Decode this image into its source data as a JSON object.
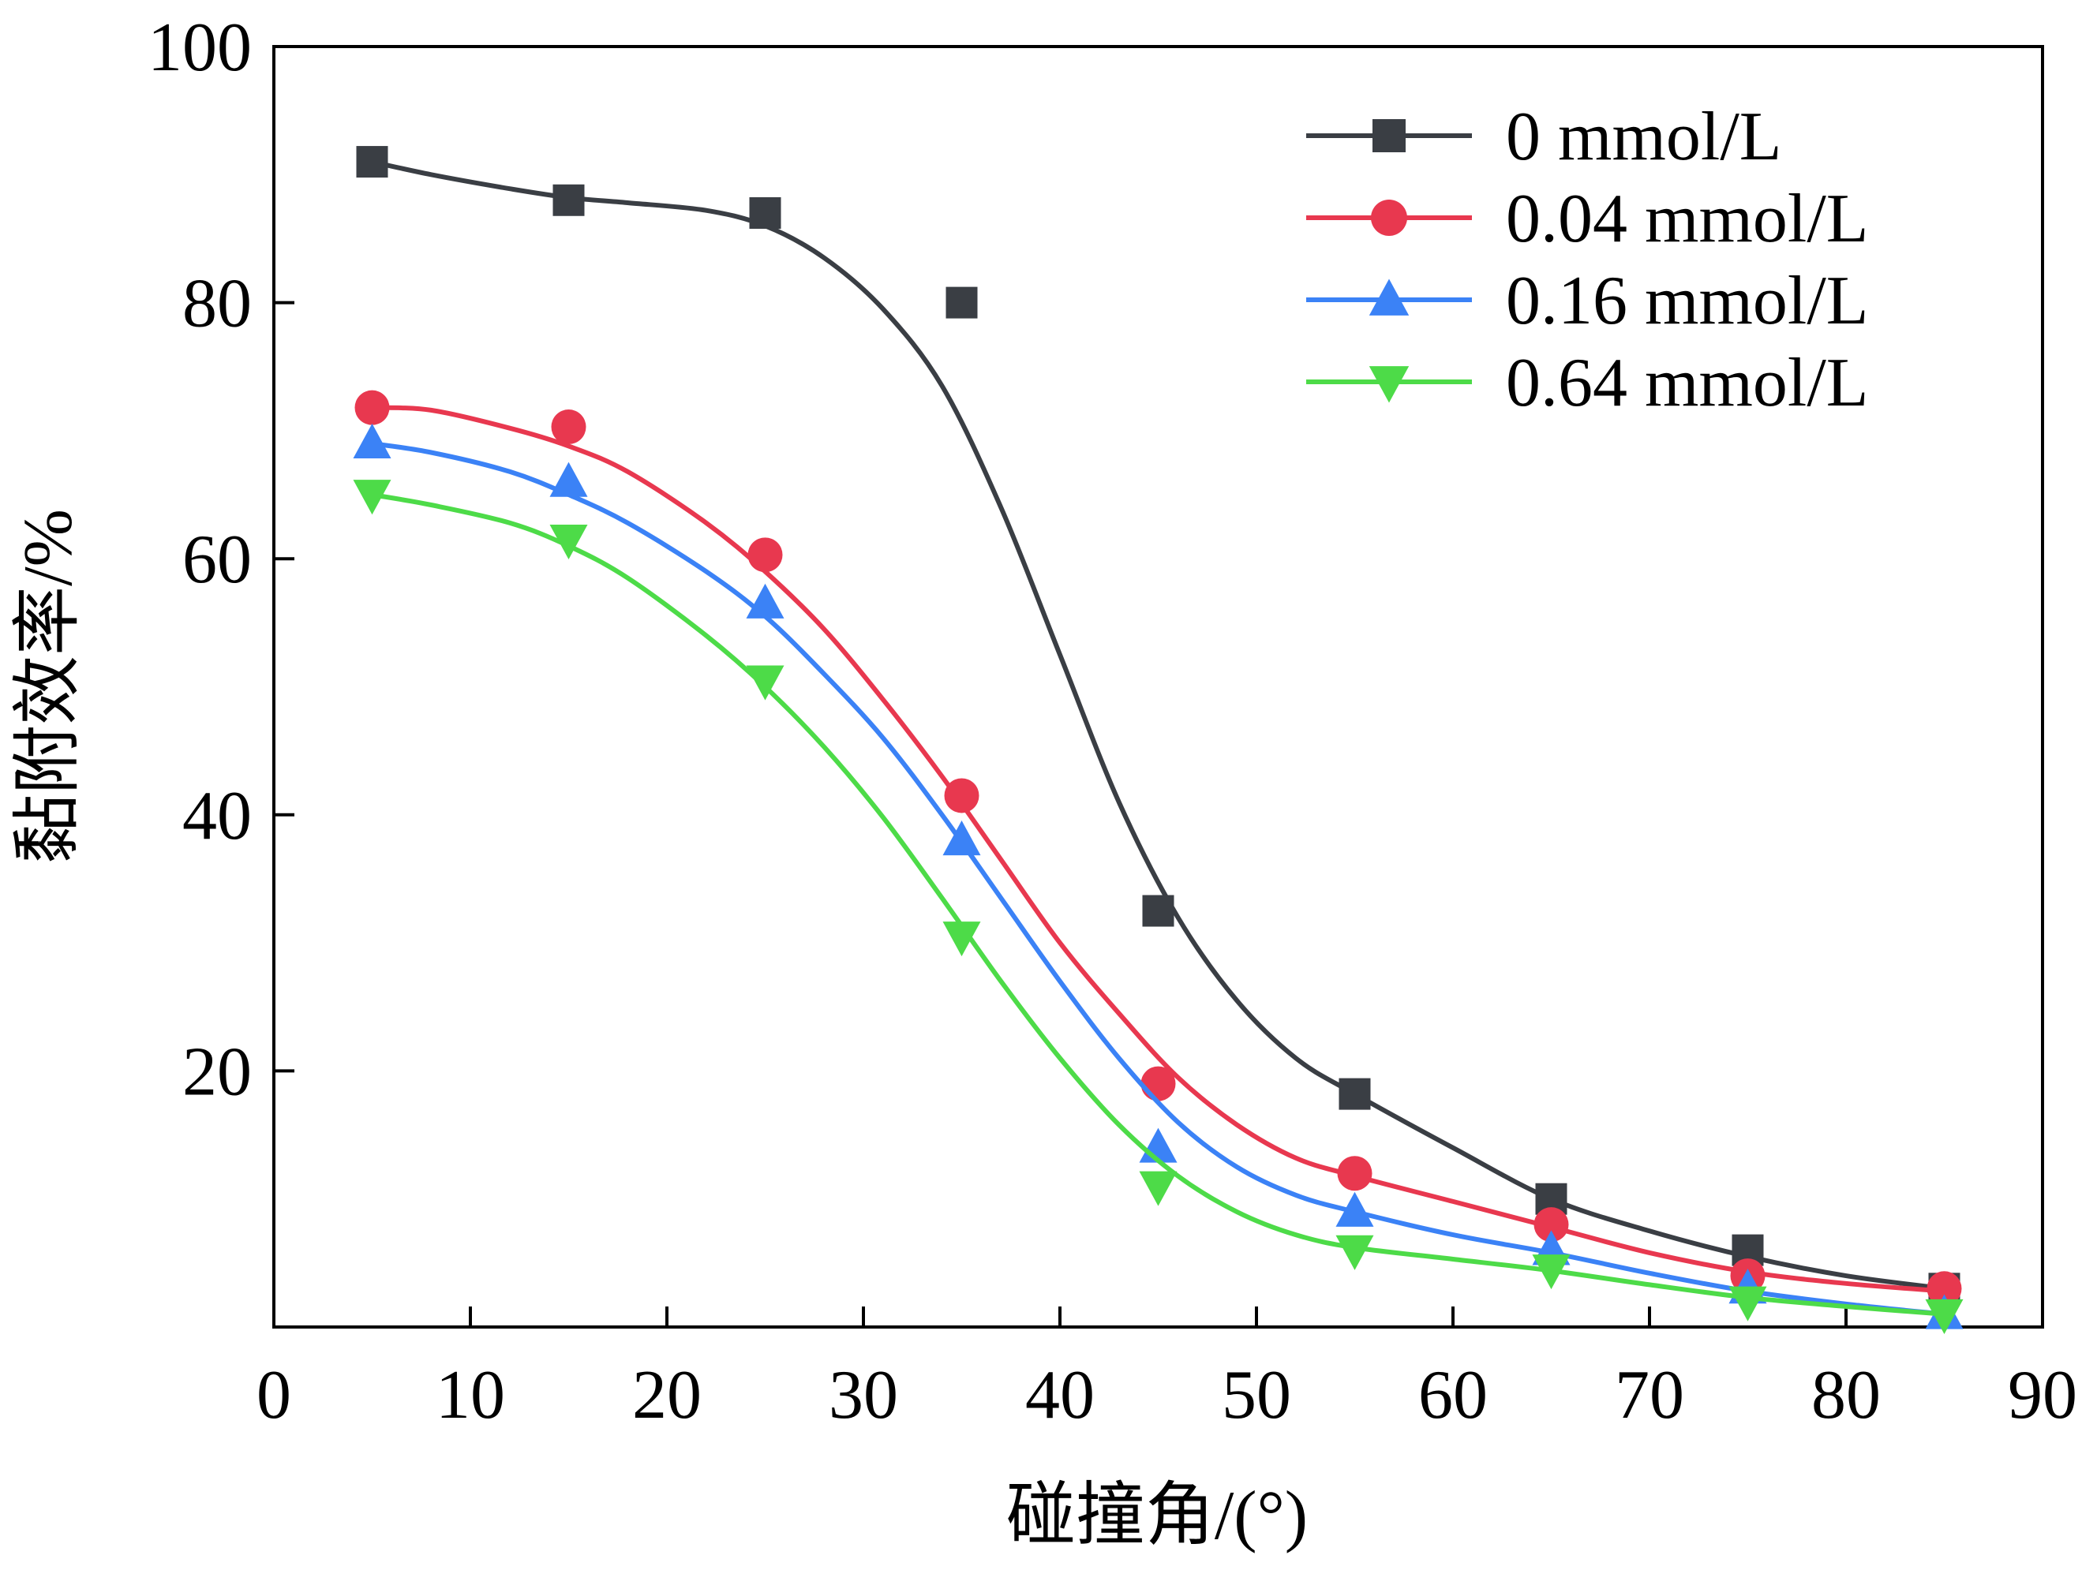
{
  "chart_data": {
    "type": "line",
    "xlabel": "碰撞角/(°)",
    "ylabel": "黏附效率/%",
    "xlim": [
      0,
      90
    ],
    "ylim": [
      0,
      100
    ],
    "x_tick_labels": [
      "0",
      "10",
      "20",
      "30",
      "40",
      "50",
      "60",
      "70",
      "80",
      "90"
    ],
    "y_tick_labels": [
      "20",
      "40",
      "60",
      "80",
      "100"
    ],
    "x": [
      5,
      15,
      25,
      35,
      45,
      55,
      65,
      75,
      85
    ],
    "grid": false,
    "legend_position": "top-right",
    "series": [
      {
        "name": "0 mmol/L",
        "marker": "square",
        "color": "#3a3e44",
        "values": [
          91.0,
          88.0,
          87.0,
          80.0,
          32.5,
          18.2,
          10.0,
          6.0,
          3.0
        ],
        "fit": [
          [
            5,
            91.0
          ],
          [
            8,
            90.0
          ],
          [
            12,
            88.9
          ],
          [
            15,
            88.2
          ],
          [
            18,
            87.8
          ],
          [
            22,
            87.2
          ],
          [
            25,
            86.0
          ],
          [
            28,
            83.5
          ],
          [
            31,
            79.5
          ],
          [
            34,
            73.5
          ],
          [
            37,
            64.0
          ],
          [
            40,
            52.5
          ],
          [
            43,
            41.0
          ],
          [
            46,
            32.0
          ],
          [
            49,
            25.5
          ],
          [
            52,
            21.0
          ],
          [
            55,
            18.2
          ],
          [
            60,
            14.0
          ],
          [
            65,
            10.0
          ],
          [
            70,
            7.5
          ],
          [
            75,
            5.5
          ],
          [
            80,
            4.0
          ],
          [
            85,
            3.0
          ]
        ]
      },
      {
        "name": "0.04 mmol/L",
        "marker": "circle",
        "color": "#e8384f",
        "values": [
          71.8,
          70.3,
          60.3,
          41.5,
          19.0,
          12.0,
          8.0,
          4.0,
          3.0
        ],
        "fit": [
          [
            5,
            71.8
          ],
          [
            8,
            71.6
          ],
          [
            12,
            70.2
          ],
          [
            15,
            68.8
          ],
          [
            18,
            66.8
          ],
          [
            22,
            62.8
          ],
          [
            25,
            59.0
          ],
          [
            28,
            54.5
          ],
          [
            31,
            49.0
          ],
          [
            34,
            43.0
          ],
          [
            37,
            36.5
          ],
          [
            40,
            30.0
          ],
          [
            43,
            24.5
          ],
          [
            46,
            19.5
          ],
          [
            49,
            15.8
          ],
          [
            52,
            13.2
          ],
          [
            55,
            11.8
          ],
          [
            60,
            9.8
          ],
          [
            65,
            7.8
          ],
          [
            70,
            5.8
          ],
          [
            75,
            4.3
          ],
          [
            80,
            3.4
          ],
          [
            85,
            2.8
          ]
        ]
      },
      {
        "name": "0.16 mmol/L",
        "marker": "triangle-up",
        "color": "#3b82f6",
        "values": [
          69.0,
          66.0,
          56.5,
          38.0,
          14.0,
          9.0,
          6.0,
          3.0,
          1.0
        ],
        "fit": [
          [
            5,
            69.0
          ],
          [
            8,
            68.3
          ],
          [
            12,
            66.8
          ],
          [
            15,
            65.0
          ],
          [
            18,
            62.8
          ],
          [
            22,
            59.0
          ],
          [
            25,
            55.5
          ],
          [
            28,
            51.0
          ],
          [
            31,
            46.0
          ],
          [
            34,
            40.0
          ],
          [
            37,
            33.5
          ],
          [
            40,
            27.0
          ],
          [
            43,
            21.0
          ],
          [
            46,
            16.0
          ],
          [
            49,
            12.5
          ],
          [
            52,
            10.3
          ],
          [
            55,
            9.0
          ],
          [
            60,
            7.2
          ],
          [
            65,
            5.8
          ],
          [
            70,
            4.2
          ],
          [
            75,
            2.8
          ],
          [
            80,
            1.8
          ],
          [
            85,
            1.0
          ]
        ]
      },
      {
        "name": "0.64 mmol/L",
        "marker": "triangle-down",
        "color": "#4ddb48",
        "values": [
          65.0,
          61.5,
          50.5,
          30.5,
          11.0,
          6.0,
          4.5,
          2.0,
          1.0
        ],
        "fit": [
          [
            5,
            65.0
          ],
          [
            8,
            64.2
          ],
          [
            12,
            62.8
          ],
          [
            15,
            61.0
          ],
          [
            18,
            58.5
          ],
          [
            22,
            54.0
          ],
          [
            25,
            50.0
          ],
          [
            28,
            45.3
          ],
          [
            31,
            39.8
          ],
          [
            34,
            33.5
          ],
          [
            37,
            27.0
          ],
          [
            40,
            21.0
          ],
          [
            43,
            15.8
          ],
          [
            46,
            11.8
          ],
          [
            49,
            9.0
          ],
          [
            52,
            7.2
          ],
          [
            55,
            6.2
          ],
          [
            60,
            5.3
          ],
          [
            65,
            4.4
          ],
          [
            70,
            3.3
          ],
          [
            75,
            2.3
          ],
          [
            80,
            1.6
          ],
          [
            85,
            1.0
          ]
        ]
      }
    ]
  }
}
